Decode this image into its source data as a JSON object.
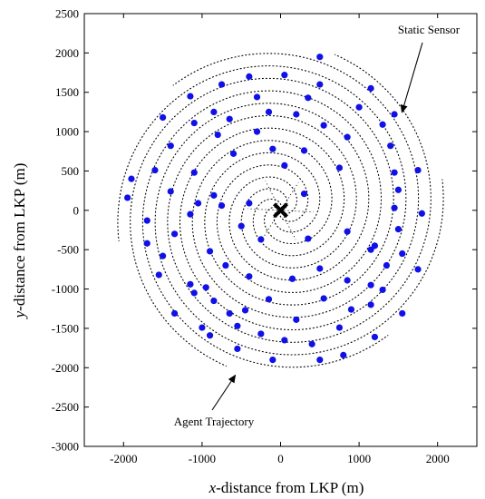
{
  "chart_data": {
    "type": "scatter",
    "title": "",
    "xlabel": {
      "var": "x",
      "rest": "-distance from LKP (m)"
    },
    "ylabel": {
      "var": "y",
      "rest": "-distance from LKP (m)"
    },
    "xlim": [
      -2500,
      2500
    ],
    "ylim": [
      -3000,
      2500
    ],
    "x_ticks": [
      -2000,
      -1000,
      0,
      1000,
      2000
    ],
    "y_ticks": [
      2500,
      2000,
      1500,
      1000,
      500,
      0,
      -500,
      -1000,
      -1500,
      -2000,
      -2500,
      -3000
    ],
    "grid": false,
    "lkp": {
      "x": 0,
      "y": 0,
      "marker": "x"
    },
    "trajectory_arms": 6,
    "trajectory_max_radius": 2100,
    "sensor_color": "#1010e8",
    "annotations": [
      {
        "text": "Static Sensor",
        "points_to": {
          "x": 1500,
          "y": 1200
        }
      },
      {
        "text": "Agent Trajectory",
        "points_to": {
          "x": -600,
          "y": -2050
        }
      }
    ],
    "series": [
      {
        "values": [
          {
            "x": 500,
            "y": 1950
          },
          {
            "x": -750,
            "y": 1600
          },
          {
            "x": 500,
            "y": 1600
          },
          {
            "x": -400,
            "y": 1700
          },
          {
            "x": 50,
            "y": 1720
          },
          {
            "x": 1150,
            "y": 1550
          },
          {
            "x": -1150,
            "y": 1450
          },
          {
            "x": -300,
            "y": 1440
          },
          {
            "x": 350,
            "y": 1430
          },
          {
            "x": 1000,
            "y": 1310
          },
          {
            "x": 1450,
            "y": 1220
          },
          {
            "x": -850,
            "y": 1250
          },
          {
            "x": -1500,
            "y": 1180
          },
          {
            "x": -150,
            "y": 1250
          },
          {
            "x": 200,
            "y": 1220
          },
          {
            "x": -650,
            "y": 1160
          },
          {
            "x": -1100,
            "y": 1110
          },
          {
            "x": 550,
            "y": 1080
          },
          {
            "x": 1300,
            "y": 1090
          },
          {
            "x": -800,
            "y": 960
          },
          {
            "x": -300,
            "y": 1000
          },
          {
            "x": 850,
            "y": 930
          },
          {
            "x": 1400,
            "y": 820
          },
          {
            "x": -1400,
            "y": 820
          },
          {
            "x": -600,
            "y": 720
          },
          {
            "x": -100,
            "y": 780
          },
          {
            "x": 300,
            "y": 760
          },
          {
            "x": -1600,
            "y": 510
          },
          {
            "x": -1100,
            "y": 480
          },
          {
            "x": 750,
            "y": 540
          },
          {
            "x": 1750,
            "y": 510
          },
          {
            "x": 50,
            "y": 570
          },
          {
            "x": 1450,
            "y": 480
          },
          {
            "x": -1900,
            "y": 400
          },
          {
            "x": -1400,
            "y": 240
          },
          {
            "x": -850,
            "y": 190
          },
          {
            "x": 300,
            "y": 210
          },
          {
            "x": 1500,
            "y": 260
          },
          {
            "x": -1950,
            "y": 160
          },
          {
            "x": -1050,
            "y": 90
          },
          {
            "x": -400,
            "y": 90
          },
          {
            "x": 1450,
            "y": 30
          },
          {
            "x": -1150,
            "y": -50
          },
          {
            "x": -750,
            "y": 60
          },
          {
            "x": 1800,
            "y": -40
          },
          {
            "x": -1700,
            "y": -130
          },
          {
            "x": -500,
            "y": -200
          },
          {
            "x": 1500,
            "y": -240
          },
          {
            "x": 850,
            "y": -270
          },
          {
            "x": 350,
            "y": -360
          },
          {
            "x": -1350,
            "y": -300
          },
          {
            "x": 1200,
            "y": -450
          },
          {
            "x": -1700,
            "y": -420
          },
          {
            "x": -250,
            "y": -370
          },
          {
            "x": 1550,
            "y": -550
          },
          {
            "x": -900,
            "y": -520
          },
          {
            "x": 1150,
            "y": -500
          },
          {
            "x": -1500,
            "y": -580
          },
          {
            "x": -700,
            "y": -700
          },
          {
            "x": 1350,
            "y": -700
          },
          {
            "x": 500,
            "y": -740
          },
          {
            "x": -1550,
            "y": -820
          },
          {
            "x": 1750,
            "y": -750
          },
          {
            "x": -400,
            "y": -840
          },
          {
            "x": 150,
            "y": -870
          },
          {
            "x": 850,
            "y": -890
          },
          {
            "x": -1150,
            "y": -940
          },
          {
            "x": 1150,
            "y": -950
          },
          {
            "x": -950,
            "y": -980
          },
          {
            "x": 1300,
            "y": -1010
          },
          {
            "x": -1100,
            "y": -1050
          },
          {
            "x": -150,
            "y": -1130
          },
          {
            "x": 550,
            "y": -1120
          },
          {
            "x": -850,
            "y": -1150
          },
          {
            "x": 1150,
            "y": -1200
          },
          {
            "x": -450,
            "y": -1270
          },
          {
            "x": -1350,
            "y": -1310
          },
          {
            "x": 900,
            "y": -1260
          },
          {
            "x": 1550,
            "y": -1310
          },
          {
            "x": -650,
            "y": -1310
          },
          {
            "x": 200,
            "y": -1390
          },
          {
            "x": -1000,
            "y": -1490
          },
          {
            "x": -550,
            "y": -1470
          },
          {
            "x": 750,
            "y": -1490
          },
          {
            "x": 1200,
            "y": -1610
          },
          {
            "x": -250,
            "y": -1570
          },
          {
            "x": 50,
            "y": -1650
          },
          {
            "x": -900,
            "y": -1590
          },
          {
            "x": 400,
            "y": -1700
          },
          {
            "x": -550,
            "y": -1760
          },
          {
            "x": 800,
            "y": -1840
          },
          {
            "x": -100,
            "y": -1900
          },
          {
            "x": 500,
            "y": -1900
          }
        ]
      }
    ]
  }
}
